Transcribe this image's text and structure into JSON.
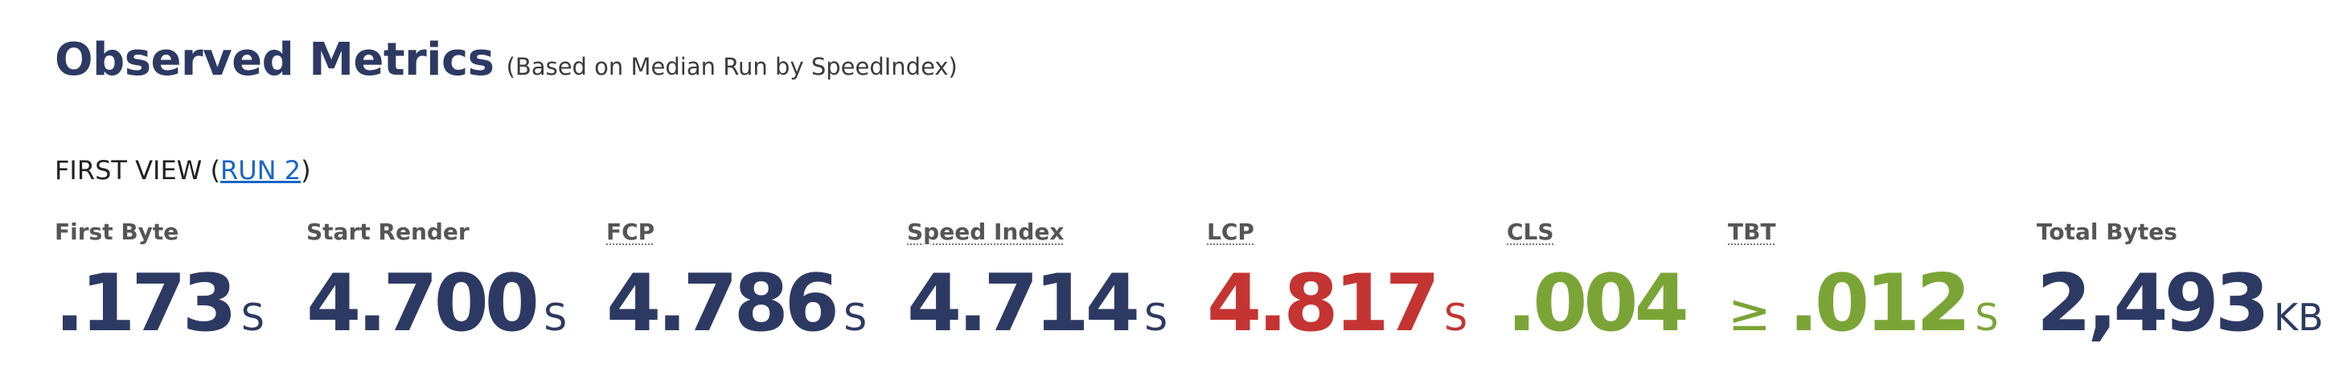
{
  "header": {
    "title": "Observed Metrics",
    "subtitle": "(Based on Median Run by SpeedIndex)"
  },
  "view": {
    "label_prefix": "FIRST VIEW (",
    "run_link": "RUN 2",
    "label_suffix": ")"
  },
  "metrics": [
    {
      "label": "First Byte",
      "value": ".173",
      "unit": "S",
      "prefix": "",
      "status": "default"
    },
    {
      "label": "Start Render",
      "value": "4.700",
      "unit": "S",
      "prefix": "",
      "status": "default"
    },
    {
      "label": "FCP",
      "value": "4.786",
      "unit": "S",
      "prefix": "",
      "status": "default"
    },
    {
      "label": "Speed Index",
      "value": "4.714",
      "unit": "S",
      "prefix": "",
      "status": "default"
    },
    {
      "label": "LCP",
      "value": "4.817",
      "unit": "S",
      "prefix": "",
      "status": "poor"
    },
    {
      "label": "CLS",
      "value": ".004",
      "unit": "",
      "prefix": "",
      "status": "good"
    },
    {
      "label": "TBT",
      "value": ".012",
      "unit": "S",
      "prefix": "≥",
      "status": "good"
    },
    {
      "label": "Total Bytes",
      "value": "2,493",
      "unit": "KB",
      "prefix": "",
      "status": "default"
    }
  ],
  "colors": {
    "default": "#2c3a63",
    "poor": "#c43432",
    "good": "#7aa536",
    "link": "#1a66c7"
  }
}
